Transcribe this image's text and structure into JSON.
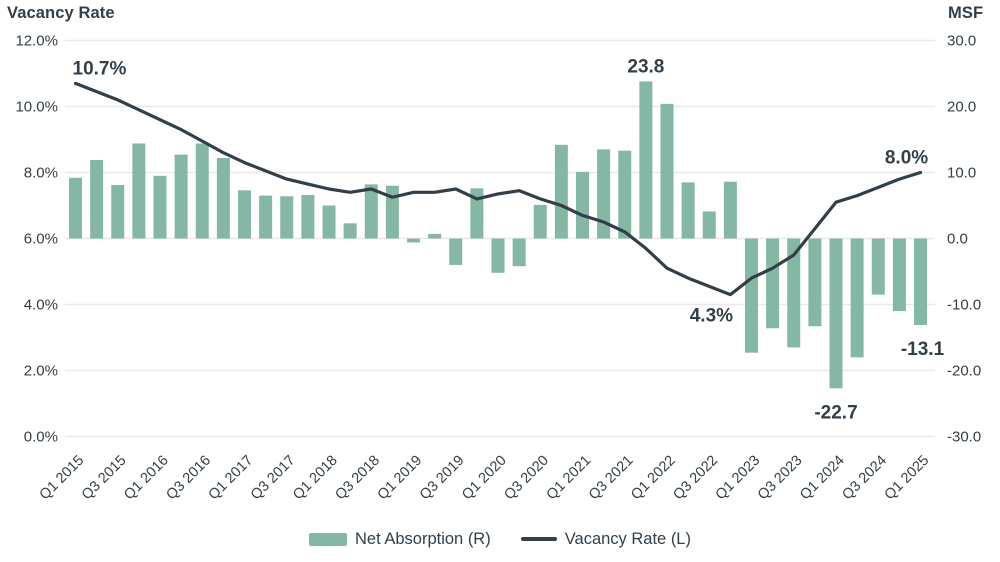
{
  "chart": {
    "left_axis_title": "Vacancy Rate",
    "right_axis_title": "MSF",
    "legend": [
      {
        "label": "Net Absorption (R)",
        "marker": "swatch"
      },
      {
        "label": "Vacancy Rate (L)",
        "marker": "line"
      }
    ]
  },
  "colors": {
    "bar": "#84b7a4",
    "line": "#333f48",
    "grid": "#e9e9e9",
    "text": "#333f48"
  },
  "chart_data": {
    "type": "bar+line combo",
    "categories": [
      "Q1 2015",
      "Q2 2015",
      "Q3 2015",
      "Q4 2015",
      "Q1 2016",
      "Q2 2016",
      "Q3 2016",
      "Q4 2016",
      "Q1 2017",
      "Q2 2017",
      "Q3 2017",
      "Q4 2017",
      "Q1 2018",
      "Q2 2018",
      "Q3 2018",
      "Q4 2018",
      "Q1 2019",
      "Q2 2019",
      "Q3 2019",
      "Q4 2019",
      "Q1 2020",
      "Q2 2020",
      "Q3 2020",
      "Q4 2020",
      "Q1 2021",
      "Q2 2021",
      "Q3 2021",
      "Q4 2021",
      "Q1 2022",
      "Q2 2022",
      "Q3 2022",
      "Q4 2022",
      "Q1 2023",
      "Q2 2023",
      "Q3 2023",
      "Q4 2023",
      "Q1 2024",
      "Q2 2024",
      "Q3 2024",
      "Q4 2024",
      "Q1 2025"
    ],
    "x_tick_labels_shown": [
      "Q1 2015",
      "Q3 2015",
      "Q1 2016",
      "Q3 2016",
      "Q1 2017",
      "Q3 2017",
      "Q1 2018",
      "Q3 2018",
      "Q1 2019",
      "Q3 2019",
      "Q1 2020",
      "Q3 2020",
      "Q1 2021",
      "Q3 2021",
      "Q1 2022",
      "Q3 2022",
      "Q1 2023",
      "Q3 2023",
      "Q1 2024",
      "Q3 2024",
      "Q1 2025"
    ],
    "series": [
      {
        "name": "Net Absorption (R)",
        "type": "bar",
        "axis": "right",
        "unit": "MSF",
        "values": [
          9.2,
          11.9,
          8.1,
          14.4,
          9.5,
          12.7,
          14.4,
          12.2,
          7.3,
          6.5,
          6.4,
          6.6,
          5.0,
          2.3,
          8.2,
          8.0,
          -0.6,
          0.7,
          -4.0,
          7.6,
          -5.2,
          -4.2,
          5.1,
          14.2,
          10.1,
          13.5,
          13.3,
          23.8,
          20.4,
          8.5,
          4.1,
          8.6,
          -17.3,
          -13.6,
          -16.5,
          -13.3,
          -22.7,
          -18.0,
          -8.5,
          -11.0,
          -13.1
        ]
      },
      {
        "name": "Vacancy Rate (L)",
        "type": "line",
        "axis": "left",
        "unit": "%",
        "values": [
          10.7,
          10.45,
          10.2,
          9.9,
          9.6,
          9.3,
          8.95,
          8.6,
          8.3,
          8.05,
          7.8,
          7.65,
          7.5,
          7.4,
          7.5,
          7.25,
          7.4,
          7.4,
          7.5,
          7.2,
          7.35,
          7.45,
          7.2,
          7.0,
          6.7,
          6.5,
          6.2,
          5.7,
          5.1,
          4.8,
          4.55,
          4.3,
          4.8,
          5.1,
          5.5,
          6.3,
          7.1,
          7.3,
          7.55,
          7.8,
          8.0
        ]
      }
    ],
    "left_axis": {
      "min": 0,
      "max": 12,
      "ticks": [
        {
          "label": "12.0%",
          "value": 12
        },
        {
          "label": "10.0%",
          "value": 10
        },
        {
          "label": "8.0%",
          "value": 8
        },
        {
          "label": "6.0%",
          "value": 6
        },
        {
          "label": "4.0%",
          "value": 4
        },
        {
          "label": "2.0%",
          "value": 2
        },
        {
          "label": "0.0%",
          "value": 0
        }
      ]
    },
    "right_axis": {
      "min": -30,
      "max": 30,
      "ticks": [
        {
          "label": "30.0",
          "value": 30
        },
        {
          "label": "20.0",
          "value": 20
        },
        {
          "label": "10.0",
          "value": 10
        },
        {
          "label": "0.0",
          "value": 0
        },
        {
          "label": "-10.0",
          "value": -10
        },
        {
          "label": "-20.0",
          "value": -20
        },
        {
          "label": "-30.0",
          "value": -30
        }
      ]
    },
    "grid": "horizontal only",
    "legend_position": "bottom center",
    "annotations": [
      {
        "text": "10.7%",
        "series": "line",
        "index": 0,
        "value": 10.7
      },
      {
        "text": "23.8",
        "series": "bars",
        "index": 27,
        "value": 23.8
      },
      {
        "text": "8.0%",
        "series": "line",
        "index": 40,
        "value": 8.0
      },
      {
        "text": "4.3%",
        "series": "line",
        "index": 31,
        "value": 4.3
      },
      {
        "text": "-22.7",
        "series": "bars",
        "index": 36,
        "value": -22.7
      },
      {
        "text": "-13.1",
        "series": "bars",
        "index": 40,
        "value": -13.1
      }
    ]
  }
}
